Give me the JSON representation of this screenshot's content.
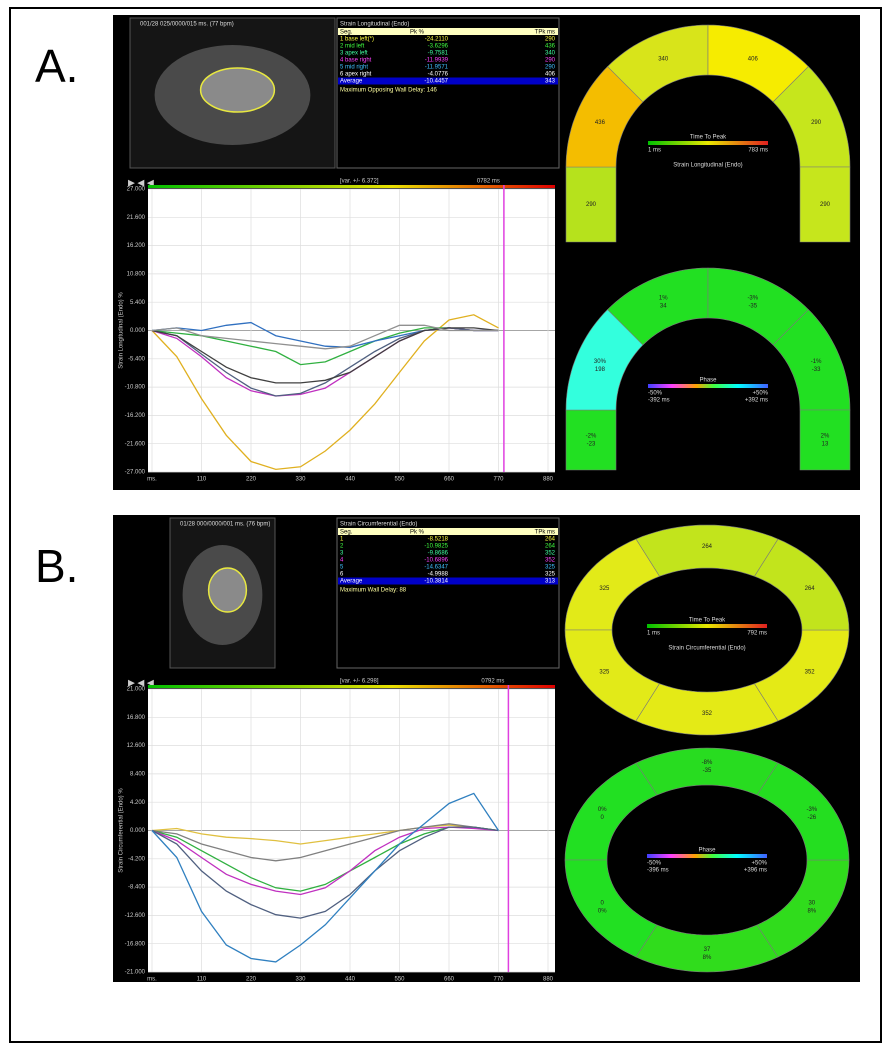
{
  "panels": [
    {
      "label": "A.",
      "image_caption": "001/28 025/0000/015 ms. (77 bpm)",
      "table": {
        "title": "Strain Longitudinal (Endo)",
        "header": [
          "Seg.",
          "Pk %",
          "TPk ms"
        ],
        "rows": [
          [
            "1 base left(*)",
            "-24.2110",
            "290"
          ],
          [
            "2 mid left",
            "-3.6296",
            "436"
          ],
          [
            "3 apex left",
            "-9.7581",
            "340"
          ],
          [
            "4 base right",
            "-11.9939",
            "290"
          ],
          [
            "5 mid right",
            "-11.9571",
            "290"
          ],
          [
            "6 apex right",
            "-4.0776",
            "406"
          ]
        ],
        "row_colors": [
          "#ffff40",
          "#40ff40",
          "#40ffa0",
          "#ff40ff",
          "#40c0ff",
          "#ffffff"
        ],
        "average": [
          "Average",
          "-10.4457",
          "343"
        ],
        "note": "Maximum Opposing Wall Delay: 146"
      },
      "ttp_map": {
        "shape": "horseshoe",
        "title": "Time To Peak",
        "min": "1 ms",
        "max": "783 ms",
        "caption": "Strain Longitudinal (Endo)",
        "segments": [
          {
            "lines": [
              "290"
            ],
            "color": "#b6e21c"
          },
          {
            "lines": [
              "436"
            ],
            "color": "#f4bd00"
          },
          {
            "lines": [
              "340"
            ],
            "color": "#d8e41a"
          },
          {
            "lines": [
              "406"
            ],
            "color": "#f6ec00"
          },
          {
            "lines": [
              "290"
            ],
            "color": "#c6e61c"
          },
          {
            "lines": [
              "290"
            ],
            "color": "#c6e61c"
          }
        ]
      },
      "phase_map": {
        "shape": "horseshoe",
        "title": "Phase",
        "min": "-50%",
        "max": "+50%",
        "min_ms": "-392 ms",
        "max_ms": "+392 ms",
        "segments": [
          {
            "lines": [
              "-2%",
              "-23"
            ],
            "color": "#22e022"
          },
          {
            "lines": [
              "30%",
              "198"
            ],
            "color": "#33ffdd"
          },
          {
            "lines": [
              "1%",
              "34"
            ],
            "color": "#22e022"
          },
          {
            "lines": [
              "-3%",
              "-35"
            ],
            "color": "#22e022"
          },
          {
            "lines": [
              "-1%",
              "-33"
            ],
            "color": "#22e022"
          },
          {
            "lines": [
              "2%",
              "13"
            ],
            "color": "#22e022"
          }
        ]
      }
    },
    {
      "label": "B.",
      "image_caption": "01/28 000/0000/001 ms. (76 bpm)",
      "table": {
        "title": "Strain Circumferential (Endo)",
        "header": [
          "Seg.",
          "Pk %",
          "TPk ms"
        ],
        "rows": [
          [
            "1",
            "-8.5218",
            "264"
          ],
          [
            "2",
            "-10.9825",
            "264"
          ],
          [
            "3",
            "-9.8686",
            "352"
          ],
          [
            "4",
            "-10.6896",
            "352"
          ],
          [
            "5",
            "-14.6347",
            "325"
          ],
          [
            "6",
            "-4.9988",
            "325"
          ]
        ],
        "row_colors": [
          "#ffff40",
          "#40ff40",
          "#40ffa0",
          "#ff40ff",
          "#40c0ff",
          "#ffffff"
        ],
        "average": [
          "Average",
          "-10.3814",
          "313"
        ],
        "note": "Maximum Wall Delay: 88"
      },
      "ttp_map": {
        "shape": "ring",
        "title": "Time To Peak",
        "min": "1 ms",
        "max": "792 ms",
        "caption": "Strain Circumferential (Endo)",
        "segments": [
          {
            "lines": [
              "264"
            ],
            "color": "#c2e41c"
          },
          {
            "lines": [
              "325"
            ],
            "color": "#e2ea18"
          },
          {
            "lines": [
              "325"
            ],
            "color": "#e2ea18"
          },
          {
            "lines": [
              "352"
            ],
            "color": "#e4ea16"
          },
          {
            "lines": [
              "352"
            ],
            "color": "#e4ea16"
          },
          {
            "lines": [
              "264"
            ],
            "color": "#c2e41c"
          }
        ]
      },
      "phase_map": {
        "shape": "ring",
        "title": "Phase",
        "min": "-50%",
        "max": "+50%",
        "min_ms": "-396 ms",
        "max_ms": "+396 ms",
        "segments": [
          {
            "lines": [
              "-8%",
              "-35"
            ],
            "color": "#28dc20"
          },
          {
            "lines": [
              "0%",
              "0"
            ],
            "color": "#22e022"
          },
          {
            "lines": [
              "0",
              "0%"
            ],
            "color": "#22e022"
          },
          {
            "lines": [
              "37",
              "8%"
            ],
            "color": "#30dc1c"
          },
          {
            "lines": [
              "30",
              "8%"
            ],
            "color": "#30dc1c"
          },
          {
            "lines": [
              "-3%",
              "-26"
            ],
            "color": "#24de20"
          }
        ]
      }
    }
  ],
  "chart_data": [
    {
      "type": "line",
      "ylabel": "Strain Longitudinal (Endo) %",
      "variance": "[var. +/- 6.372]",
      "cursor": {
        "value": 782,
        "label": "0782 ms"
      },
      "grid": true,
      "x": [
        0,
        55,
        110,
        165,
        220,
        275,
        330,
        385,
        440,
        495,
        550,
        605,
        660,
        715,
        770
      ],
      "xlim": [
        0,
        880
      ],
      "xticks": [
        {
          "value": 0,
          "label": "ms."
        },
        110,
        220,
        330,
        440,
        550,
        660,
        770,
        880
      ],
      "ylim": [
        -27,
        27
      ],
      "yticks": [
        {
          "value": 27,
          "label": "27.000"
        },
        {
          "value": 21.6,
          "label": "21.600"
        },
        {
          "value": 16.2,
          "label": "16.200"
        },
        {
          "value": 10.8,
          "label": "10.800"
        },
        {
          "value": 5.4,
          "label": "5.400"
        },
        {
          "value": 0,
          "label": "0.000"
        },
        {
          "value": -5.4,
          "label": "-5.400"
        },
        {
          "value": -10.8,
          "label": "-10.800"
        },
        {
          "value": -16.2,
          "label": "-16.200"
        },
        {
          "value": -21.6,
          "label": "-21.600"
        },
        {
          "value": -27,
          "label": "-27.000"
        }
      ],
      "series": [
        {
          "color": "#e0b020",
          "values": [
            0,
            -5,
            -13,
            -20,
            -25,
            -26.5,
            -26,
            -23,
            -19,
            -14,
            -8,
            -2,
            2,
            3,
            0.5
          ]
        },
        {
          "color": "#30b040",
          "values": [
            0,
            -0.5,
            -1,
            -2,
            -3,
            -4,
            -6.5,
            -6,
            -4,
            -2,
            -0.5,
            0.5,
            0.5,
            0,
            0
          ]
        },
        {
          "color": "#3070c0",
          "values": [
            0,
            0.5,
            0,
            1,
            1.5,
            -1,
            -2,
            -3,
            -3.2,
            -2,
            -1,
            0,
            0.5,
            0,
            0
          ]
        },
        {
          "color": "#c030c0",
          "values": [
            0,
            -1.5,
            -5,
            -9,
            -11.5,
            -12.5,
            -12.2,
            -11,
            -8,
            -5,
            -2,
            0,
            0.5,
            0,
            0
          ]
        },
        {
          "color": "#506080",
          "values": [
            0,
            -1,
            -4.5,
            -8,
            -11,
            -12.5,
            -12,
            -10,
            -7,
            -4,
            -1.5,
            0,
            0.5,
            0,
            0
          ]
        },
        {
          "color": "#404040",
          "values": [
            0,
            -1,
            -4,
            -7,
            -9,
            -10,
            -10,
            -9.5,
            -8,
            -5,
            -2,
            0,
            0.5,
            0.5,
            0
          ]
        },
        {
          "color": "#909090",
          "values": [
            0,
            0.5,
            -1,
            -1.5,
            -2,
            -2.5,
            -3,
            -3.5,
            -3,
            -1,
            1,
            1,
            0,
            0,
            0
          ]
        }
      ]
    },
    {
      "type": "line",
      "ylabel": "Strain Circumferential (Endo) %",
      "variance": "[var. +/- 6.298]",
      "cursor": {
        "value": 792,
        "label": "0792 ms"
      },
      "grid": true,
      "x": [
        0,
        55,
        110,
        165,
        220,
        275,
        330,
        385,
        440,
        495,
        550,
        605,
        660,
        715,
        770
      ],
      "xlim": [
        0,
        880
      ],
      "xticks": [
        {
          "value": 0,
          "label": "ms."
        },
        110,
        220,
        330,
        440,
        550,
        660,
        770,
        880
      ],
      "ylim": [
        -21,
        21
      ],
      "yticks": [
        {
          "value": 21,
          "label": "21.000"
        },
        {
          "value": 16.8,
          "label": "16.800"
        },
        {
          "value": 12.6,
          "label": "12.600"
        },
        {
          "value": 8.4,
          "label": "8.400"
        },
        {
          "value": 4.2,
          "label": "4.200"
        },
        {
          "value": 0,
          "label": "0.000"
        },
        {
          "value": -4.2,
          "label": "-4.200"
        },
        {
          "value": -8.4,
          "label": "-8.400"
        },
        {
          "value": -12.6,
          "label": "-12.600"
        },
        {
          "value": -16.8,
          "label": "-16.800"
        },
        {
          "value": -21,
          "label": "-21.000"
        }
      ],
      "series": [
        {
          "color": "#e0c040",
          "values": [
            0,
            0.3,
            -0.5,
            -1,
            -1.2,
            -1.5,
            -2,
            -1.5,
            -1,
            -0.5,
            0,
            0.5,
            0.8,
            0.5,
            0
          ]
        },
        {
          "color": "#808080",
          "values": [
            0,
            -0.5,
            -2,
            -3,
            -4,
            -4.5,
            -4,
            -3,
            -2,
            -1,
            0,
            0.5,
            1,
            0.5,
            0
          ]
        },
        {
          "color": "#30b040",
          "values": [
            0,
            -1,
            -3,
            -5,
            -7,
            -8.5,
            -9,
            -8,
            -6,
            -4,
            -2,
            -0.5,
            0.5,
            0.5,
            0
          ]
        },
        {
          "color": "#c030c0",
          "values": [
            0,
            -1.5,
            -4,
            -6.5,
            -8,
            -9,
            -9.5,
            -8.5,
            -6,
            -3,
            -1,
            0.3,
            0.5,
            0.3,
            0
          ]
        },
        {
          "color": "#506080",
          "values": [
            0,
            -2,
            -6,
            -9,
            -11,
            -12.5,
            -13,
            -12,
            -9.5,
            -6,
            -3,
            -1,
            0.5,
            0.5,
            0
          ]
        },
        {
          "color": "#3080c0",
          "values": [
            0,
            -4,
            -12,
            -17,
            -19,
            -19.5,
            -17,
            -14,
            -10,
            -6,
            -2,
            1,
            4,
            5.5,
            0
          ]
        }
      ]
    }
  ]
}
